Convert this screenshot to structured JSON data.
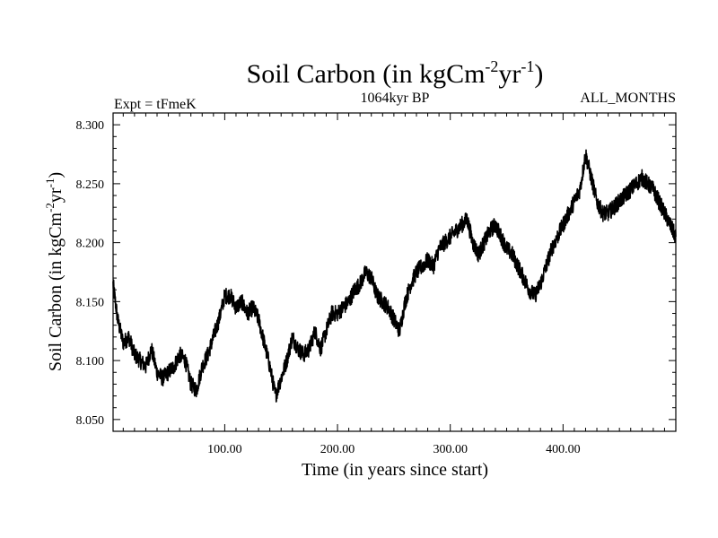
{
  "chart_data": {
    "type": "line",
    "title": "Soil Carbon (in kgCm",
    "title_sup1": "-2",
    "title_mid": "yr",
    "title_sup2": "-1",
    "title_end": ")",
    "left_note": "Expt = tFmeK",
    "center_note": "1064kyr BP",
    "right_note": "ALL_MONTHS",
    "xlabel": "Time (in years since start)",
    "ylabel": "Soil Carbon (in kgCm",
    "ylabel_sup1": "-2",
    "ylabel_mid": "yr",
    "ylabel_sup2": "-1",
    "ylabel_end": ")",
    "xlim": [
      1,
      500
    ],
    "ylim": [
      8.04,
      8.31
    ],
    "x_ticks": [
      100,
      200,
      300,
      400
    ],
    "x_tick_labels": [
      "100.00",
      "200.00",
      "300.00",
      "400.00"
    ],
    "y_ticks": [
      8.05,
      8.1,
      8.15,
      8.2,
      8.25,
      8.3
    ],
    "y_tick_labels": [
      "8.050",
      "8.100",
      "8.150",
      "8.200",
      "8.250",
      "8.300"
    ],
    "line_color": "#000000",
    "series": [
      {
        "name": "soil_carbon",
        "x": [
          1,
          5,
          10,
          15,
          20,
          25,
          30,
          35,
          40,
          45,
          50,
          55,
          60,
          65,
          70,
          75,
          80,
          85,
          90,
          95,
          100,
          105,
          110,
          115,
          120,
          125,
          130,
          135,
          140,
          145,
          150,
          155,
          160,
          165,
          170,
          175,
          180,
          185,
          190,
          195,
          200,
          205,
          210,
          215,
          220,
          225,
          230,
          235,
          240,
          245,
          250,
          255,
          260,
          265,
          270,
          275,
          280,
          285,
          290,
          295,
          300,
          305,
          310,
          315,
          320,
          325,
          330,
          335,
          340,
          345,
          350,
          355,
          360,
          365,
          370,
          375,
          380,
          385,
          390,
          395,
          400,
          405,
          410,
          415,
          420,
          425,
          430,
          435,
          440,
          445,
          450,
          455,
          460,
          465,
          470,
          475,
          480,
          485,
          490,
          495,
          500
        ],
        "values": [
          8.165,
          8.135,
          8.115,
          8.12,
          8.105,
          8.1,
          8.095,
          8.11,
          8.09,
          8.085,
          8.09,
          8.095,
          8.105,
          8.1,
          8.08,
          8.075,
          8.095,
          8.105,
          8.12,
          8.135,
          8.155,
          8.155,
          8.145,
          8.15,
          8.14,
          8.145,
          8.135,
          8.115,
          8.095,
          8.07,
          8.085,
          8.1,
          8.12,
          8.11,
          8.105,
          8.11,
          8.125,
          8.11,
          8.125,
          8.14,
          8.14,
          8.145,
          8.15,
          8.16,
          8.165,
          8.175,
          8.17,
          8.155,
          8.15,
          8.145,
          8.135,
          8.125,
          8.15,
          8.165,
          8.175,
          8.18,
          8.185,
          8.18,
          8.195,
          8.2,
          8.205,
          8.21,
          8.215,
          8.22,
          8.2,
          8.19,
          8.2,
          8.21,
          8.215,
          8.205,
          8.195,
          8.19,
          8.18,
          8.17,
          8.16,
          8.155,
          8.165,
          8.18,
          8.195,
          8.205,
          8.215,
          8.225,
          8.235,
          8.245,
          8.275,
          8.255,
          8.235,
          8.225,
          8.225,
          8.23,
          8.235,
          8.24,
          8.245,
          8.25,
          8.255,
          8.25,
          8.245,
          8.235,
          8.225,
          8.215,
          8.205
        ]
      }
    ]
  }
}
